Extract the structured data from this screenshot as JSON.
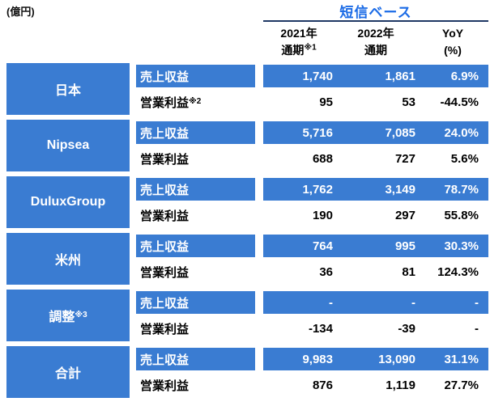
{
  "unit_label": "(億円)",
  "header": {
    "title": "短信ベース",
    "columns": [
      {
        "line1": "2021年",
        "line2": "通期",
        "line2_sup": "※1"
      },
      {
        "line1": "2022年",
        "line2": "通期",
        "line2_sup": ""
      },
      {
        "line1": "YoY",
        "line2": "(%)",
        "line2_sup": ""
      }
    ]
  },
  "metric_labels": {
    "revenue": "売上収益",
    "profit": "営業利益"
  },
  "colors": {
    "cell_blue": "#3A7CD2",
    "title_blue": "#1B6BE6",
    "underline_navy": "#1F3864"
  },
  "groups": [
    {
      "segment": "日本",
      "segment_sup": "",
      "profit_label_sup": "※2",
      "revenue": {
        "y2021": "1,740",
        "y2022": "1,861",
        "yoy": "6.9%"
      },
      "profit": {
        "y2021": "95",
        "y2022": "53",
        "yoy": "-44.5%"
      }
    },
    {
      "segment": "Nipsea",
      "segment_sup": "",
      "profit_label_sup": "",
      "revenue": {
        "y2021": "5,716",
        "y2022": "7,085",
        "yoy": "24.0%"
      },
      "profit": {
        "y2021": "688",
        "y2022": "727",
        "yoy": "5.6%"
      }
    },
    {
      "segment": "DuluxGroup",
      "segment_sup": "",
      "profit_label_sup": "",
      "revenue": {
        "y2021": "1,762",
        "y2022": "3,149",
        "yoy": "78.7%"
      },
      "profit": {
        "y2021": "190",
        "y2022": "297",
        "yoy": "55.8%"
      }
    },
    {
      "segment": "米州",
      "segment_sup": "",
      "profit_label_sup": "",
      "revenue": {
        "y2021": "764",
        "y2022": "995",
        "yoy": "30.3%"
      },
      "profit": {
        "y2021": "36",
        "y2022": "81",
        "yoy": "124.3%"
      }
    },
    {
      "segment": "調整",
      "segment_sup": "※3",
      "profit_label_sup": "",
      "revenue": {
        "y2021": "-",
        "y2022": "-",
        "yoy": "-"
      },
      "profit": {
        "y2021": "-134",
        "y2022": "-39",
        "yoy": "-"
      }
    },
    {
      "segment": "合計",
      "segment_sup": "",
      "profit_label_sup": "",
      "revenue": {
        "y2021": "9,983",
        "y2022": "13,090",
        "yoy": "31.1%"
      },
      "profit": {
        "y2021": "876",
        "y2022": "1,119",
        "yoy": "27.7%"
      }
    }
  ],
  "chart_data": {
    "type": "table",
    "title": "短信ベース",
    "unit": "億円",
    "columns": [
      "2021年通期※1",
      "2022年通期",
      "YoY(%)"
    ],
    "rows": [
      {
        "segment": "日本",
        "metric": "売上収益",
        "fy2021": 1740,
        "fy2022": 1861,
        "yoy_pct": 6.9
      },
      {
        "segment": "日本",
        "metric": "営業利益※2",
        "fy2021": 95,
        "fy2022": 53,
        "yoy_pct": -44.5
      },
      {
        "segment": "Nipsea",
        "metric": "売上収益",
        "fy2021": 5716,
        "fy2022": 7085,
        "yoy_pct": 24.0
      },
      {
        "segment": "Nipsea",
        "metric": "営業利益",
        "fy2021": 688,
        "fy2022": 727,
        "yoy_pct": 5.6
      },
      {
        "segment": "DuluxGroup",
        "metric": "売上収益",
        "fy2021": 1762,
        "fy2022": 3149,
        "yoy_pct": 78.7
      },
      {
        "segment": "DuluxGroup",
        "metric": "営業利益",
        "fy2021": 190,
        "fy2022": 297,
        "yoy_pct": 55.8
      },
      {
        "segment": "米州",
        "metric": "売上収益",
        "fy2021": 764,
        "fy2022": 995,
        "yoy_pct": 30.3
      },
      {
        "segment": "米州",
        "metric": "営業利益",
        "fy2021": 36,
        "fy2022": 81,
        "yoy_pct": 124.3
      },
      {
        "segment": "調整※3",
        "metric": "売上収益",
        "fy2021": null,
        "fy2022": null,
        "yoy_pct": null
      },
      {
        "segment": "調整※3",
        "metric": "営業利益",
        "fy2021": -134,
        "fy2022": -39,
        "yoy_pct": null
      },
      {
        "segment": "合計",
        "metric": "売上収益",
        "fy2021": 9983,
        "fy2022": 13090,
        "yoy_pct": 31.1
      },
      {
        "segment": "合計",
        "metric": "営業利益",
        "fy2021": 876,
        "fy2022": 1119,
        "yoy_pct": 27.7
      }
    ]
  }
}
